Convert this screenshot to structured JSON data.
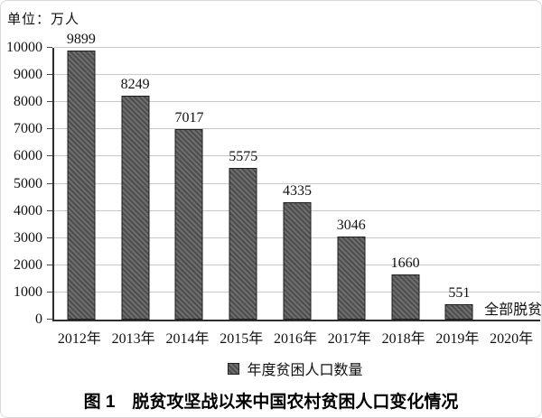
{
  "unit_label": "单位：万人",
  "chart_data": {
    "type": "bar",
    "title": "图 1　脱贫攻坚战以来中国农村贫困人口变化情况",
    "unit_label": "单位：万人",
    "categories": [
      "2012年",
      "2013年",
      "2014年",
      "2015年",
      "2016年",
      "2017年",
      "2018年",
      "2019年",
      "2020年"
    ],
    "values": [
      9899,
      8249,
      7017,
      5575,
      4335,
      3046,
      1660,
      551,
      null
    ],
    "annotation_2020": "全部脱贫",
    "legend": [
      "年度贫困人口数量"
    ],
    "legend_position": "bottom",
    "xlabel": "",
    "ylabel": "万人",
    "ylim": [
      0,
      10000
    ],
    "ytick_interval": 1000,
    "grid": true,
    "bar_color": "#5f5f5f",
    "bar_hatch": "diagonal",
    "gridline_color": "#c9c9c9",
    "axis_color": "#2e2e2e"
  },
  "caption": "图 1　脱贫攻坚战以来中国农村贫困人口变化情况"
}
